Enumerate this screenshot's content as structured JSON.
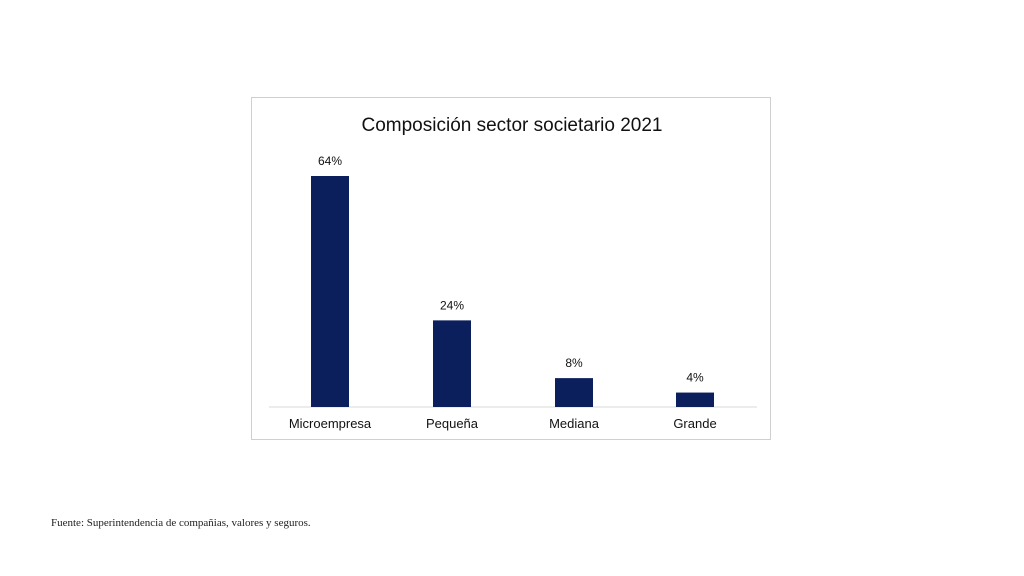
{
  "chart_data": {
    "type": "bar",
    "title": "Composición sector societario 2021",
    "categories": [
      "Microempresa",
      "Pequeña",
      "Mediana",
      "Grande"
    ],
    "values": [
      64,
      24,
      8,
      4
    ],
    "data_labels": [
      "64%",
      "24%",
      "8%",
      "4%"
    ],
    "xlabel": "",
    "ylabel": "",
    "ylim": [
      0,
      64
    ],
    "grid": false,
    "legend": "none",
    "bar_color": "#0b1f5c"
  },
  "source": "Fuente: Superintendencia de compañias, valores y seguros."
}
